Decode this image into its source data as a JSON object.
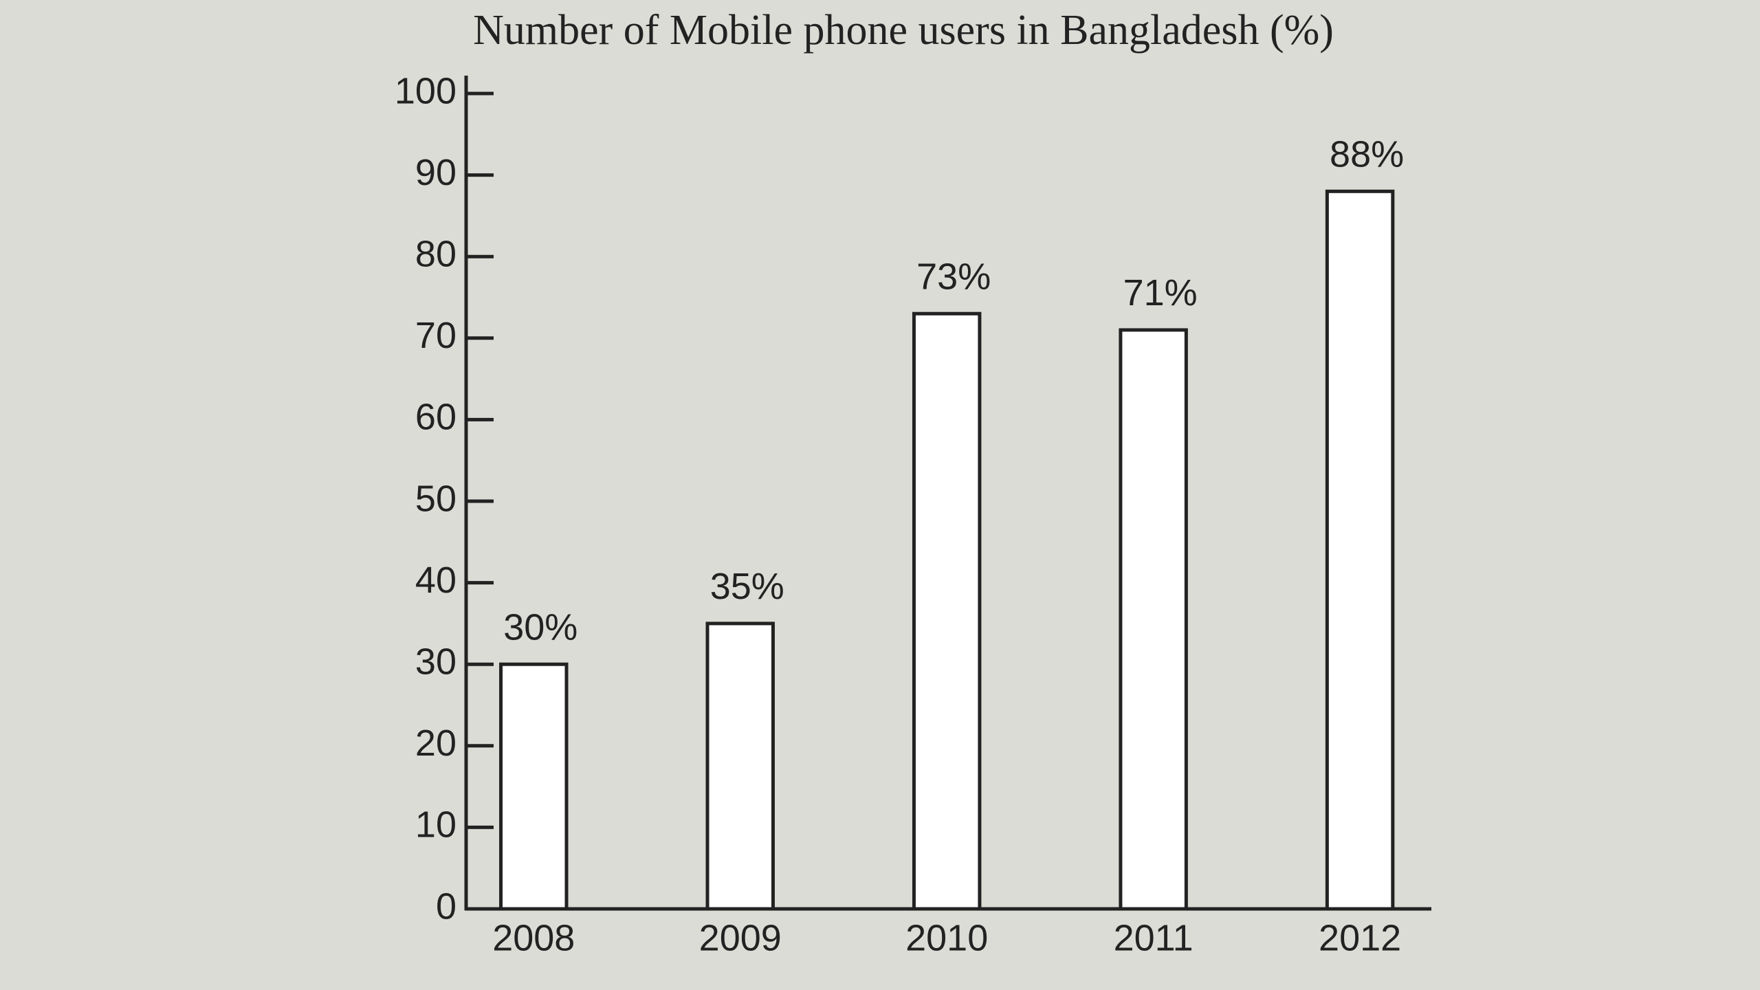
{
  "chart_data": {
    "type": "bar",
    "title": "Number of Mobile phone users in Bangladesh (%)",
    "categories": [
      "2008",
      "2009",
      "2010",
      "2011",
      "2012"
    ],
    "values": [
      30,
      35,
      73,
      71,
      88
    ],
    "value_labels": [
      "30%",
      "35%",
      "73%",
      "71%",
      "88%"
    ],
    "color": "#ffffff",
    "ylim": [
      0,
      100
    ],
    "yticks": [
      0,
      10,
      20,
      30,
      40,
      50,
      60,
      70,
      80,
      90,
      100
    ],
    "grid": false
  }
}
